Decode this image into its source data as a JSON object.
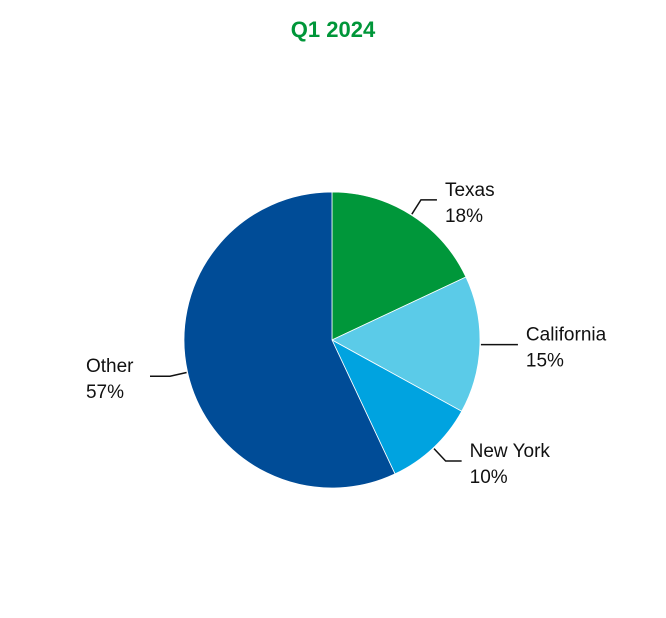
{
  "chart_data": {
    "type": "pie",
    "title": "Q1 2024",
    "title_color": "#009639",
    "start": "12 o'clock, clockwise",
    "slices": [
      {
        "label": "Texas",
        "value": 18,
        "value_label": "18%",
        "color": "#00973A"
      },
      {
        "label": "California",
        "value": 15,
        "value_label": "15%",
        "color": "#5BCBE8"
      },
      {
        "label": "New York",
        "value": 10,
        "value_label": "10%",
        "color": "#00A3E0"
      },
      {
        "label": "Other",
        "value": 57,
        "value_label": "57%",
        "color": "#004C97"
      }
    ]
  }
}
